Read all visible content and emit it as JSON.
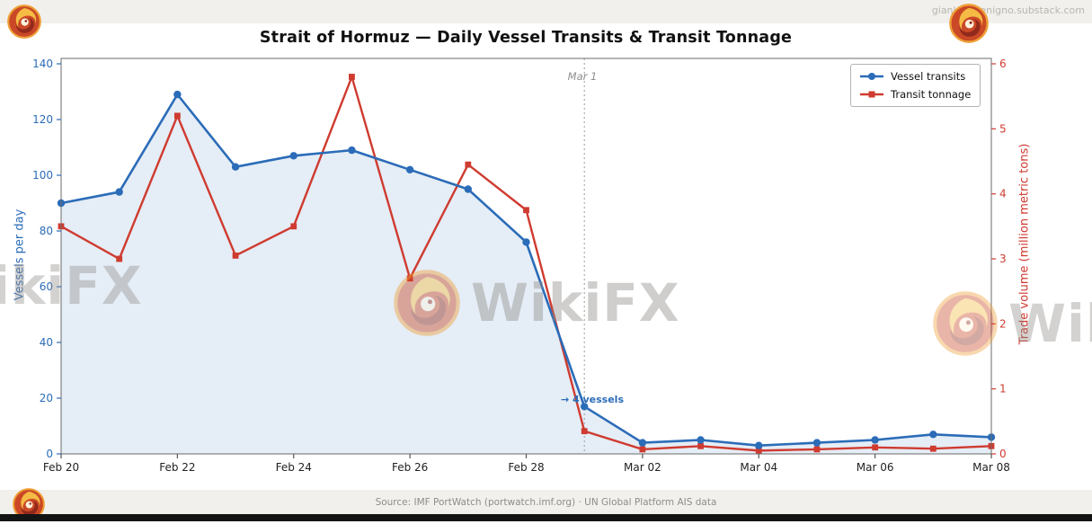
{
  "page": {
    "handle": "gianlucabenigno.substack.com",
    "brand": "WikiFX",
    "source_text": "Source: IMF PortWatch (portwatch.imf.org) · UN Global Platform AIS data"
  },
  "chart_data": {
    "type": "line",
    "title": "Strait of Hormuz — Daily Vessel Transits & Transit Tonnage",
    "x_labels": [
      "Feb 20",
      "Feb 21",
      "Feb 22",
      "Feb 23",
      "Feb 24",
      "Feb 25",
      "Feb 26",
      "Feb 27",
      "Feb 28",
      "Mar 01",
      "Mar 02",
      "Mar 03",
      "Mar 04",
      "Mar 05",
      "Mar 06",
      "Mar 07",
      "Mar 08"
    ],
    "x_tick_every": 2,
    "left_axis": {
      "label": "Vessels per day",
      "min": 0,
      "max": 140,
      "ticks": [
        0,
        20,
        40,
        60,
        80,
        100,
        120,
        140
      ],
      "color": "#2b6cb8"
    },
    "right_axis": {
      "label": "Trade volume (million metric tons)",
      "min": 0,
      "max": 6,
      "ticks": [
        0,
        1,
        2,
        3,
        4,
        5,
        6
      ],
      "color": "#cf3b30"
    },
    "series": [
      {
        "name": "Vessel transits",
        "axis": "left",
        "color": "#2b6cb8",
        "marker": "circle",
        "values": [
          90,
          94,
          129,
          103,
          107,
          109,
          102,
          95,
          76,
          17,
          4,
          5,
          3,
          4,
          5,
          7,
          6
        ]
      },
      {
        "name": "Transit tonnage",
        "axis": "right",
        "color": "#cf3b30",
        "marker": "square",
        "values": [
          3.5,
          3.0,
          5.2,
          3.05,
          3.5,
          5.8,
          2.7,
          4.45,
          3.75,
          0.35,
          0.07,
          0.12,
          0.05,
          0.07,
          0.1,
          0.08,
          0.12
        ]
      }
    ],
    "annotations": {
      "vline_label": "Mar 1",
      "vline_index": 9,
      "note": "→ 4 vessels"
    },
    "legend_position": "upper-right",
    "grid": false,
    "area_fill_under_series": "Vessel transits"
  }
}
